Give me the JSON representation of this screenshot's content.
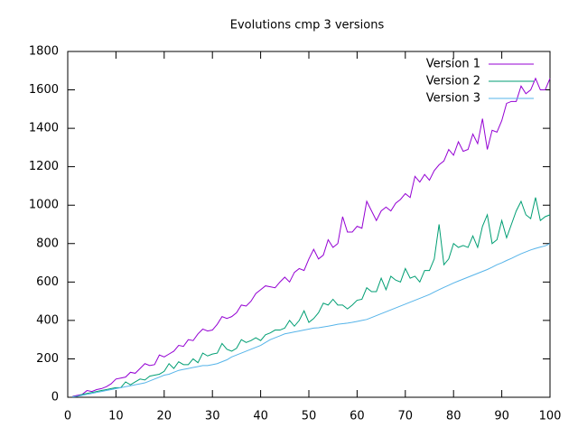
{
  "chart_data": {
    "type": "line",
    "title": "Evolutions cmp 3 versions",
    "x": [
      1,
      2,
      3,
      4,
      5,
      6,
      7,
      8,
      9,
      10,
      11,
      12,
      13,
      14,
      15,
      16,
      17,
      18,
      19,
      20,
      21,
      22,
      23,
      24,
      25,
      26,
      27,
      28,
      29,
      30,
      31,
      32,
      33,
      34,
      35,
      36,
      37,
      38,
      39,
      40,
      41,
      42,
      43,
      44,
      45,
      46,
      47,
      48,
      49,
      50,
      51,
      52,
      53,
      54,
      55,
      56,
      57,
      58,
      59,
      60,
      61,
      62,
      63,
      64,
      65,
      66,
      67,
      68,
      69,
      70,
      71,
      72,
      73,
      74,
      75,
      76,
      77,
      78,
      79,
      80,
      81,
      82,
      83,
      84,
      85,
      86,
      87,
      88,
      89,
      90,
      91,
      92,
      93,
      94,
      95,
      96,
      97,
      98,
      99,
      100
    ],
    "series": [
      {
        "name": "Version 1",
        "color": "#9400d3",
        "values": [
          5,
          10,
          15,
          35,
          30,
          40,
          45,
          55,
          70,
          95,
          100,
          105,
          130,
          125,
          150,
          175,
          165,
          170,
          220,
          210,
          225,
          240,
          270,
          265,
          300,
          295,
          330,
          355,
          345,
          350,
          380,
          420,
          410,
          420,
          440,
          480,
          475,
          500,
          540,
          560,
          580,
          575,
          570,
          600,
          625,
          600,
          650,
          670,
          660,
          720,
          770,
          720,
          740,
          820,
          780,
          800,
          940,
          860,
          860,
          890,
          880,
          1020,
          970,
          920,
          970,
          990,
          970,
          1010,
          1030,
          1060,
          1040,
          1150,
          1120,
          1160,
          1130,
          1180,
          1210,
          1230,
          1290,
          1260,
          1330,
          1280,
          1290,
          1370,
          1320,
          1450,
          1290,
          1390,
          1380,
          1440,
          1530,
          1540,
          1540,
          1620,
          1580,
          1600,
          1660,
          1600,
          1600,
          1660
        ]
      },
      {
        "name": "Version 2",
        "color": "#009e73",
        "values": [
          3,
          5,
          15,
          20,
          25,
          30,
          35,
          40,
          45,
          50,
          50,
          80,
          65,
          80,
          95,
          90,
          110,
          115,
          120,
          135,
          175,
          150,
          185,
          170,
          170,
          200,
          180,
          230,
          215,
          225,
          230,
          280,
          250,
          240,
          255,
          300,
          285,
          295,
          310,
          295,
          325,
          335,
          350,
          350,
          360,
          400,
          370,
          400,
          450,
          390,
          410,
          440,
          490,
          480,
          510,
          480,
          480,
          460,
          480,
          505,
          510,
          570,
          550,
          550,
          620,
          560,
          630,
          610,
          600,
          670,
          620,
          630,
          600,
          660,
          660,
          720,
          900,
          690,
          720,
          800,
          780,
          790,
          780,
          840,
          780,
          890,
          950,
          800,
          820,
          920,
          830,
          900,
          970,
          1020,
          950,
          930,
          1040,
          920,
          940,
          950
        ]
      },
      {
        "name": "Version 3",
        "color": "#56b4e9",
        "values": [
          2,
          5,
          10,
          15,
          20,
          25,
          30,
          35,
          40,
          45,
          50,
          55,
          60,
          65,
          70,
          75,
          85,
          95,
          105,
          115,
          120,
          130,
          140,
          145,
          150,
          155,
          160,
          165,
          165,
          170,
          175,
          185,
          195,
          210,
          220,
          230,
          240,
          250,
          260,
          270,
          285,
          300,
          310,
          320,
          330,
          335,
          340,
          345,
          350,
          355,
          360,
          362,
          366,
          370,
          375,
          380,
          383,
          386,
          390,
          395,
          400,
          405,
          415,
          425,
          435,
          445,
          455,
          465,
          475,
          485,
          495,
          505,
          515,
          525,
          535,
          548,
          560,
          572,
          583,
          595,
          605,
          615,
          625,
          635,
          645,
          655,
          665,
          677,
          690,
          700,
          712,
          723,
          735,
          747,
          757,
          767,
          775,
          782,
          788,
          800
        ]
      }
    ],
    "xlim": [
      0,
      100
    ],
    "xticks": [
      0,
      10,
      20,
      30,
      40,
      50,
      60,
      70,
      80,
      90,
      100
    ],
    "ylim": [
      0,
      1800
    ],
    "yticks": [
      0,
      200,
      400,
      600,
      800,
      1000,
      1200,
      1400,
      1600,
      1800
    ],
    "legend": "top-right"
  }
}
